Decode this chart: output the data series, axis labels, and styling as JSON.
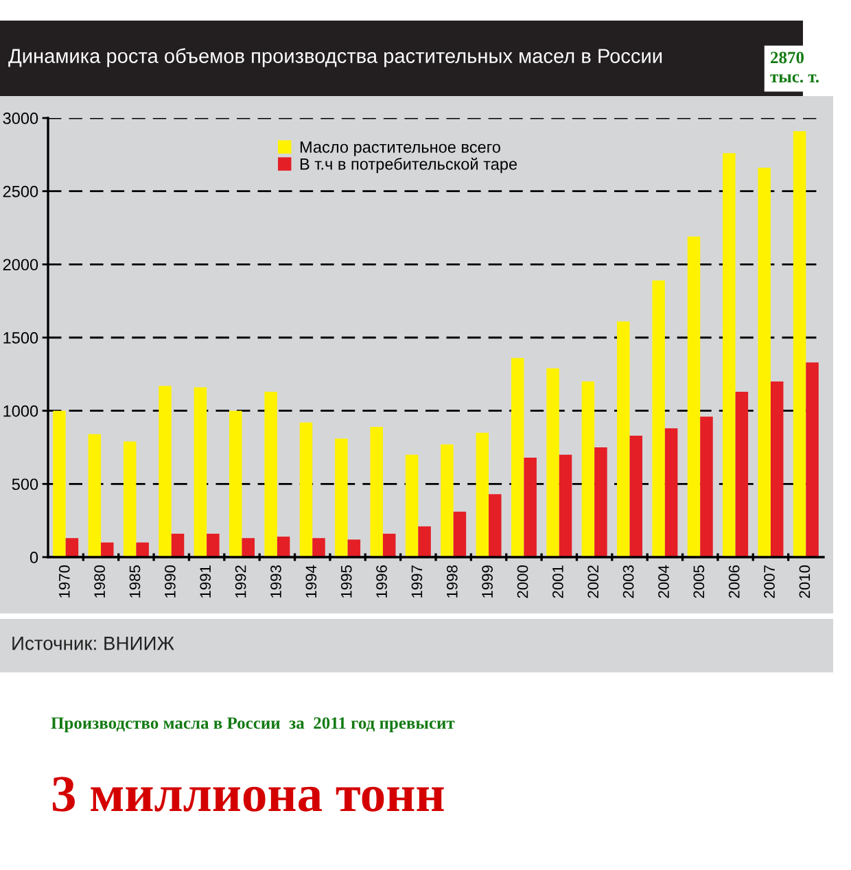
{
  "chart_data": {
    "type": "bar",
    "title": "Динамика роста объемов производства растительных масел в России",
    "categories": [
      "1970",
      "1980",
      "1985",
      "1990",
      "1991",
      "1992",
      "1993",
      "1994",
      "1995",
      "1996",
      "1997",
      "1998",
      "1999",
      "2000",
      "2001",
      "2002",
      "2003",
      "2004",
      "2005",
      "2006",
      "2007",
      "2010"
    ],
    "series": [
      {
        "name": "Масло растительное всего",
        "color": "#fff200",
        "values": [
          1000,
          840,
          790,
          1170,
          1160,
          1000,
          1130,
          920,
          810,
          890,
          700,
          770,
          850,
          1360,
          1290,
          1200,
          1610,
          1890,
          2190,
          2760,
          2660,
          2910
        ]
      },
      {
        "name": "В т.ч в потребительской таре",
        "color": "#e41f26",
        "values": [
          130,
          100,
          100,
          160,
          160,
          130,
          140,
          130,
          120,
          160,
          210,
          310,
          430,
          680,
          700,
          750,
          830,
          880,
          960,
          1130,
          1200,
          1330
        ]
      }
    ],
    "ylim": [
      0,
      3000
    ],
    "yticks": [
      0,
      500,
      1000,
      1500,
      2000,
      2500,
      3000
    ],
    "grid": "y",
    "legend": "top",
    "annotations": [
      "2870\nтыс. т.",
      "Источник: ВНИИЖ",
      "Производство масла в России  за  2011 год превысит",
      "3 миллиона тонн"
    ]
  }
}
